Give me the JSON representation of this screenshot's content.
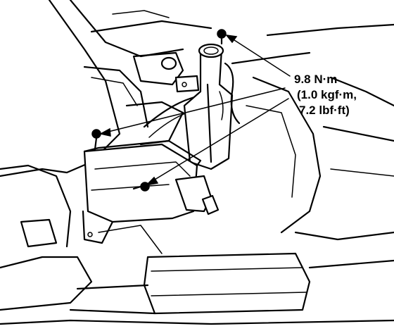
{
  "torque_spec": {
    "line1": "9.8 N·m",
    "line2": "(1.0 kgf·m,",
    "line3": "7.2 lbf·ft)"
  },
  "colors": {
    "ink": "#000000",
    "paper": "#ffffff"
  },
  "icons": [
    "bolt-icon",
    "leader-arrow"
  ]
}
